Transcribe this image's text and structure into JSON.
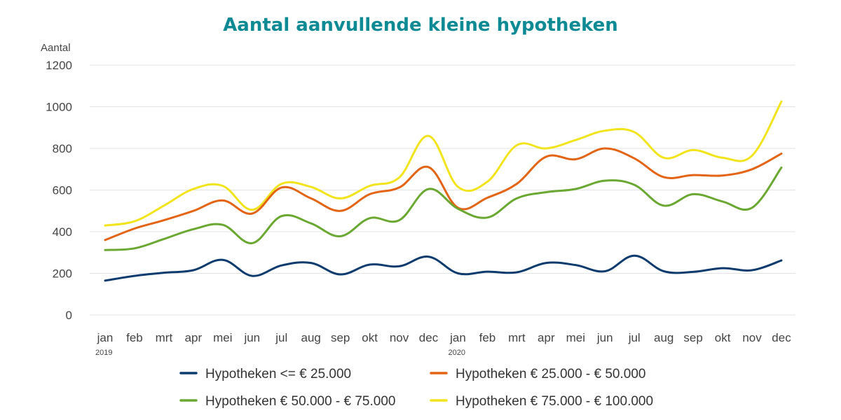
{
  "chart_data": {
    "type": "line",
    "title": "Aantal aanvullende kleine hypotheken",
    "ylabel": "Aantal",
    "xlabel": "",
    "ylim": [
      0,
      1200
    ],
    "yticks": [
      0,
      200,
      400,
      600,
      800,
      1000,
      1200
    ],
    "grid": true,
    "legend_position": "bottom",
    "categories": [
      "jan",
      "feb",
      "mrt",
      "apr",
      "mei",
      "jun",
      "jul",
      "aug",
      "sep",
      "okt",
      "nov",
      "dec",
      "jan",
      "feb",
      "mrt",
      "apr",
      "mei",
      "jun",
      "jul",
      "aug",
      "sep",
      "okt",
      "nov",
      "dec"
    ],
    "year_labels": [
      {
        "index": 0,
        "label": "2019"
      },
      {
        "index": 12,
        "label": "2020"
      }
    ],
    "series": [
      {
        "name": "Hypotheken <= € 25.000",
        "color": "#0d3b6e",
        "values": [
          165,
          188,
          203,
          215,
          265,
          188,
          238,
          250,
          195,
          242,
          234,
          280,
          200,
          208,
          205,
          250,
          240,
          210,
          285,
          210,
          207,
          225,
          215,
          262
        ]
      },
      {
        "name": "Hypotheken € 25.000 - € 50.000",
        "color": "#e36414",
        "values": [
          360,
          415,
          455,
          500,
          550,
          487,
          612,
          560,
          500,
          580,
          612,
          710,
          515,
          563,
          630,
          760,
          748,
          800,
          752,
          662,
          672,
          670,
          700,
          775
        ]
      },
      {
        "name": "Hypotheken € 50.000 - € 75.000",
        "color": "#6aa832",
        "values": [
          312,
          320,
          365,
          412,
          433,
          345,
          475,
          440,
          378,
          465,
          455,
          605,
          510,
          468,
          560,
          590,
          605,
          645,
          625,
          525,
          580,
          545,
          515,
          708
        ]
      },
      {
        "name": "Hypotheken € 75.000 - € 100.000",
        "color": "#f2e41c",
        "values": [
          430,
          450,
          525,
          605,
          620,
          505,
          630,
          615,
          560,
          620,
          660,
          860,
          615,
          640,
          815,
          800,
          840,
          885,
          878,
          755,
          792,
          755,
          765,
          1025
        ]
      }
    ]
  }
}
